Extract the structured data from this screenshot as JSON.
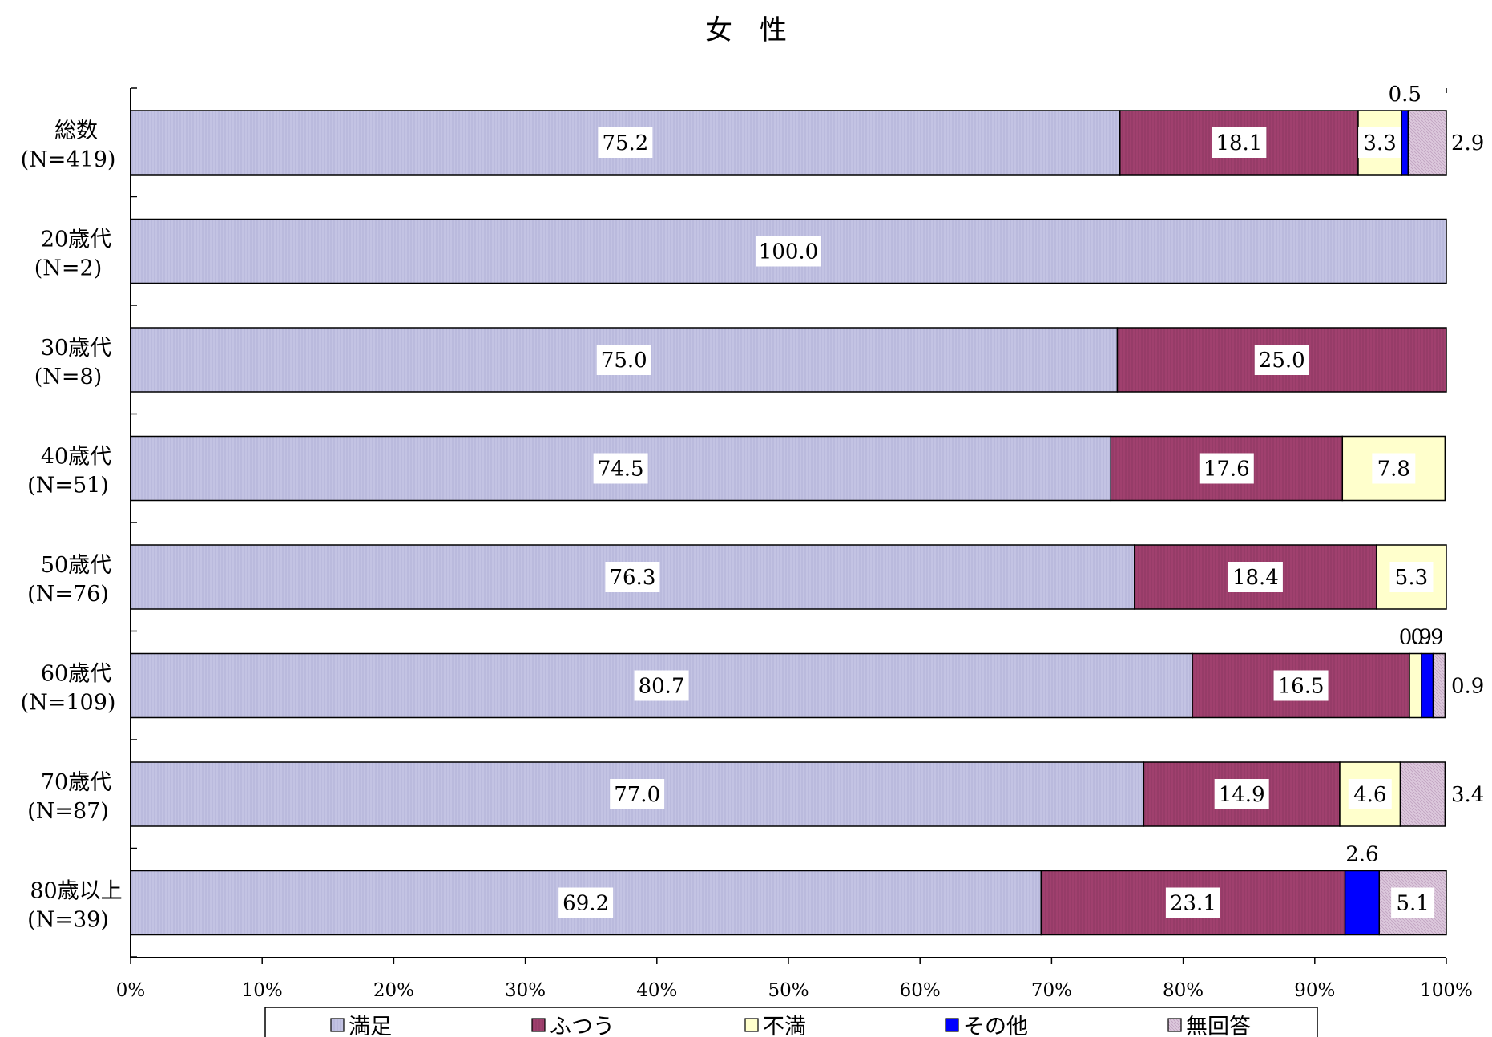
{
  "chart_data": {
    "type": "bar",
    "orientation": "horizontal",
    "stacked": "percent",
    "title": "女　性",
    "categories": [
      {
        "name": "総数",
        "n": "(N=419)"
      },
      {
        "name": "20歳代",
        "n": "(N=2)"
      },
      {
        "name": "30歳代",
        "n": "(N=8)"
      },
      {
        "name": "40歳代",
        "n": "(N=51)"
      },
      {
        "name": "50歳代",
        "n": "(N=76)"
      },
      {
        "name": "60歳代",
        "n": "(N=109)"
      },
      {
        "name": "70歳代",
        "n": "(N=87)"
      },
      {
        "name": "80歳以上",
        "n": "(N=39)"
      }
    ],
    "series": [
      {
        "name": "満足",
        "color": "#c3c3e3",
        "values": [
          75.2,
          100.0,
          75.0,
          74.5,
          76.3,
          80.7,
          77.0,
          69.2
        ]
      },
      {
        "name": "ふつう",
        "color": "#a0406e",
        "values": [
          18.1,
          0,
          25.0,
          17.6,
          18.4,
          16.5,
          14.9,
          23.1
        ]
      },
      {
        "name": "不満",
        "color": "#ffffcc",
        "values": [
          3.3,
          0,
          0,
          7.8,
          5.3,
          0.9,
          4.6,
          0
        ]
      },
      {
        "name": "その他",
        "color": "#0000ff",
        "values": [
          0.5,
          0,
          0,
          0,
          0,
          0.9,
          0,
          2.6
        ]
      },
      {
        "name": "無回答",
        "color": "#dcc8dc",
        "values": [
          2.9,
          0,
          0,
          0,
          0,
          0.9,
          3.4,
          5.1
        ]
      }
    ],
    "label_placement": [
      [
        "in",
        "in",
        "in",
        "above",
        "right"
      ],
      [
        "in",
        "none",
        "none",
        "none",
        "none"
      ],
      [
        "in",
        "in",
        "none",
        "none",
        "none"
      ],
      [
        "in",
        "in",
        "in",
        "none",
        "none"
      ],
      [
        "in",
        "in",
        "in",
        "none",
        "none"
      ],
      [
        "in",
        "in",
        "above",
        "above",
        "right"
      ],
      [
        "in",
        "in",
        "in",
        "none",
        "right"
      ],
      [
        "in",
        "in",
        "none",
        "above",
        "in"
      ]
    ],
    "xaxis": {
      "ticks": [
        0,
        10,
        20,
        30,
        40,
        50,
        60,
        70,
        80,
        90,
        100
      ],
      "tick_labels": [
        "0%",
        "10%",
        "20%",
        "30%",
        "40%",
        "50%",
        "60%",
        "70%",
        "80%",
        "90%",
        "100%"
      ]
    },
    "xlim": [
      0,
      100
    ],
    "legend_position": "bottom",
    "grid": false
  }
}
